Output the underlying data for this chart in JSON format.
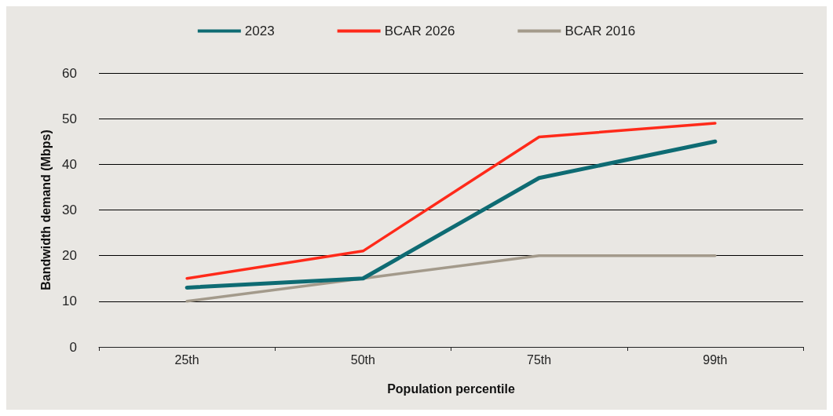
{
  "chart_data": {
    "type": "line",
    "xlabel": "Population percentile",
    "ylabel": "Bandwidth demand (Mbps)",
    "categories": [
      "25th",
      "50th",
      "75th",
      "99th"
    ],
    "series": [
      {
        "name": "2023",
        "color": "#0e6b73",
        "values": [
          13,
          15,
          37,
          45
        ]
      },
      {
        "name": "BCAR 2026",
        "color": "#ff2a1a",
        "values": [
          15,
          21,
          46,
          49
        ]
      },
      {
        "name": "BCAR 2016",
        "color": "#a39a8b",
        "values": [
          10,
          15,
          20,
          20
        ]
      }
    ],
    "ylim": [
      0,
      60
    ],
    "yticks": [
      0,
      10,
      20,
      30,
      40,
      50,
      60
    ],
    "grid": "y",
    "legend": "top",
    "marker": "none",
    "line_style": "solid"
  }
}
